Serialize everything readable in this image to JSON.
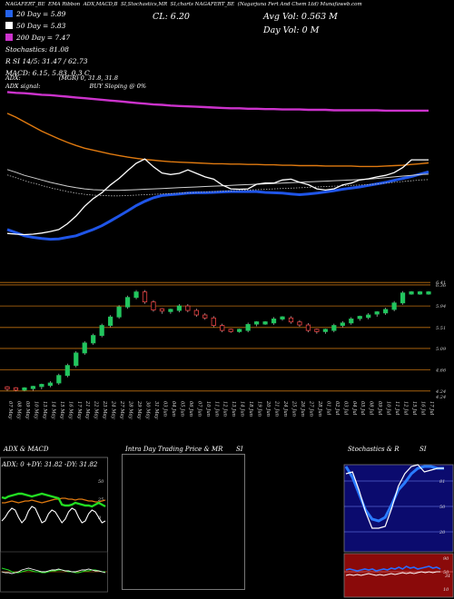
{
  "header": {
    "title_segments": [
      "NAGAFERT_BE",
      "EMA Ribbon",
      "ADX,MACD,B",
      "SI,Stochastics,MR",
      "SI,charts NAGAFERT_BE",
      "(Nagarjuna Fert And Chem Ltd) Munafaweb.com"
    ],
    "close_label": "CL: 6.20",
    "avg_vol_label": "Avg Vol: 0.563 M",
    "day_vol_label": "Day Vol: 0  M"
  },
  "legend": {
    "items": [
      {
        "label": "20  Day = 5.89",
        "color": "#2563eb"
      },
      {
        "label": "50  Day = 5.83",
        "color": "#ffffff"
      },
      {
        "label": "200  Day = 7.47",
        "color": "#cc33cc"
      }
    ],
    "stochastics_line": "Stochastics: 81.08",
    "rsi_line": "R         SI 14/5: 31.47 / 62.73",
    "macd_line": "MACD: 6.15,  5.83,  0.3 C"
  },
  "adx_info": {
    "adx_label": "ADX:",
    "adx_values": "(MGR) 0,  31.8,  31.8",
    "signal_label": "ADX  signal:",
    "signal_value": "BUY Sloping @ 0%"
  },
  "colors": {
    "ema20": "#1f55e8",
    "ema50": "#d0d0d0",
    "ema200": "#cc33cc",
    "ema_orange": "#e07a10",
    "up": "#22c55e",
    "down": "#ef4444",
    "support": "#c07010"
  },
  "price_axis": {
    "ticks": [
      "6.41",
      "6.36",
      "5.94",
      "5.51",
      "5.09",
      "4.66",
      "4.24",
      "4.24"
    ]
  },
  "dates": [
    "07 May",
    "08 May",
    "09 May",
    "10 May",
    "13 May",
    "14 May",
    "15 May",
    "16 May",
    "17 May",
    "21 May",
    "22 May",
    "23 May",
    "24 May",
    "27 May",
    "28 May",
    "29 May",
    "30 May",
    "31 May",
    "03 Jun",
    "04 Jun",
    "05 Jun",
    "06 Jun",
    "07 Jun",
    "10 Jun",
    "11 Jun",
    "12 Jun",
    "13 Jun",
    "14 Jun",
    "18 Jun",
    "19 Jun",
    "20 Jun",
    "21 Jun",
    "24 Jun",
    "25 Jun",
    "26 Jun",
    "27 Jun",
    "28 Jun",
    "01 Jul",
    "02 Jul",
    "03 Jul",
    "04 Jul",
    "05 Jul",
    "08 Jul",
    "09 Jul",
    "10 Jul",
    "11 Jul",
    "12 Jul",
    "15 Jul",
    "16 Jul",
    "17 Jul"
  ],
  "panels": {
    "adx": {
      "title": "ADX  & MACD",
      "values_label": "ADX: 0  +DY: 31.82  -DY: 31.82",
      "ticks": [
        "50",
        "25",
        "0"
      ]
    },
    "intra": {
      "title": "Intra  Day Trading Price  & MR",
      "title_right": "SI"
    },
    "stoch": {
      "title": "Stochastics & R",
      "title_right": "SI",
      "ticks": [
        "81",
        "50",
        "20"
      ],
      "rsi_ticks": [
        "90",
        "50",
        "10"
      ],
      "rsi_right_value": "31"
    }
  },
  "chart_data": [
    {
      "type": "line",
      "name": "EMA ribbon",
      "series": [
        {
          "name": "20 Day",
          "values": [
            4.4,
            4.32,
            4.24,
            4.2,
            4.17,
            4.15,
            4.16,
            4.2,
            4.24,
            4.32,
            4.4,
            4.5,
            4.62,
            4.75,
            4.88,
            5.02,
            5.13,
            5.22,
            5.28,
            5.3,
            5.32,
            5.34,
            5.35,
            5.35,
            5.36,
            5.37,
            5.38,
            5.38,
            5.38,
            5.38,
            5.36,
            5.35,
            5.34,
            5.32,
            5.3,
            5.32,
            5.34,
            5.37,
            5.4,
            5.44,
            5.47,
            5.5,
            5.54,
            5.58,
            5.62,
            5.67,
            5.72,
            5.77,
            5.83,
            5.89
          ]
        },
        {
          "name": "50 Day",
          "values": [
            5.95,
            5.88,
            5.8,
            5.74,
            5.68,
            5.62,
            5.57,
            5.52,
            5.48,
            5.45,
            5.43,
            5.42,
            5.41,
            5.41,
            5.42,
            5.43,
            5.44,
            5.45,
            5.46,
            5.47,
            5.48,
            5.49,
            5.5,
            5.51,
            5.52,
            5.53,
            5.54,
            5.55,
            5.56,
            5.57,
            5.58,
            5.59,
            5.6,
            5.61,
            5.62,
            5.63,
            5.64,
            5.65,
            5.66,
            5.67,
            5.68,
            5.69,
            5.7,
            5.72,
            5.74,
            5.76,
            5.78,
            5.8,
            5.82,
            5.83
          ]
        },
        {
          "name": "200 Day",
          "values": [
            7.95,
            7.93,
            7.92,
            7.9,
            7.88,
            7.87,
            7.85,
            7.83,
            7.81,
            7.79,
            7.77,
            7.75,
            7.73,
            7.71,
            7.69,
            7.67,
            7.65,
            7.63,
            7.62,
            7.6,
            7.59,
            7.58,
            7.57,
            7.56,
            7.55,
            7.54,
            7.53,
            7.53,
            7.52,
            7.52,
            7.51,
            7.51,
            7.5,
            7.5,
            7.5,
            7.49,
            7.49,
            7.49,
            7.48,
            7.48,
            7.48,
            7.48,
            7.48,
            7.48,
            7.47,
            7.47,
            7.47,
            7.47,
            7.47,
            7.47
          ]
        },
        {
          "name": "100 Day",
          "values": [
            7.4,
            7.3,
            7.18,
            7.06,
            6.94,
            6.84,
            6.74,
            6.65,
            6.57,
            6.5,
            6.45,
            6.4,
            6.35,
            6.31,
            6.27,
            6.24,
            6.21,
            6.19,
            6.17,
            6.15,
            6.14,
            6.13,
            6.12,
            6.11,
            6.1,
            6.1,
            6.09,
            6.09,
            6.08,
            6.08,
            6.07,
            6.07,
            6.06,
            6.06,
            6.05,
            6.05,
            6.05,
            6.04,
            6.04,
            6.04,
            6.04,
            6.03,
            6.03,
            6.03,
            6.04,
            6.05,
            6.06,
            6.08,
            6.1,
            6.12
          ]
        },
        {
          "name": "Close",
          "values": [
            4.3,
            4.28,
            4.27,
            4.28,
            4.31,
            4.35,
            4.4,
            4.55,
            4.75,
            5.0,
            5.2,
            5.35,
            5.55,
            5.72,
            5.92,
            6.11,
            6.22,
            6.02,
            5.86,
            5.82,
            5.85,
            5.94,
            5.85,
            5.76,
            5.7,
            5.55,
            5.45,
            5.44,
            5.45,
            5.57,
            5.6,
            5.6,
            5.68,
            5.7,
            5.62,
            5.56,
            5.45,
            5.42,
            5.45,
            5.55,
            5.6,
            5.68,
            5.71,
            5.76,
            5.8,
            5.87,
            6.0,
            6.2,
            6.2,
            6.2
          ]
        }
      ]
    },
    {
      "type": "candlestick",
      "name": "Daily price",
      "x": [
        "07 May",
        "08 May",
        "09 May",
        "10 May",
        "13 May",
        "14 May",
        "15 May",
        "16 May",
        "17 May",
        "21 May",
        "22 May",
        "23 May",
        "24 May",
        "27 May",
        "28 May",
        "29 May",
        "30 May",
        "31 May",
        "03 Jun",
        "04 Jun",
        "05 Jun",
        "06 Jun",
        "07 Jun",
        "10 Jun",
        "11 Jun",
        "12 Jun",
        "13 Jun",
        "14 Jun",
        "18 Jun",
        "19 Jun",
        "20 Jun",
        "21 Jun",
        "24 Jun",
        "25 Jun",
        "26 Jun",
        "27 Jun",
        "28 Jun",
        "01 Jul",
        "02 Jul",
        "03 Jul",
        "04 Jul",
        "05 Jul",
        "08 Jul",
        "09 Jul",
        "10 Jul",
        "11 Jul",
        "12 Jul",
        "15 Jul",
        "16 Jul",
        "17 Jul"
      ],
      "open": [
        4.3,
        4.28,
        4.27,
        4.28,
        4.31,
        4.35,
        4.4,
        4.55,
        4.75,
        5.0,
        5.2,
        5.35,
        5.55,
        5.72,
        5.92,
        6.11,
        6.22,
        6.02,
        5.86,
        5.82,
        5.85,
        5.94,
        5.85,
        5.76,
        5.7,
        5.55,
        5.45,
        5.44,
        5.45,
        5.57,
        5.6,
        5.6,
        5.68,
        5.7,
        5.62,
        5.56,
        5.45,
        5.42,
        5.45,
        5.55,
        5.6,
        5.68,
        5.71,
        5.76,
        5.8,
        5.87,
        6.0,
        6.2,
        6.2,
        6.2
      ],
      "close": [
        4.28,
        4.27,
        4.28,
        4.31,
        4.35,
        4.4,
        4.55,
        4.75,
        5.0,
        5.2,
        5.35,
        5.55,
        5.72,
        5.92,
        6.11,
        6.22,
        6.02,
        5.86,
        5.82,
        5.85,
        5.94,
        5.85,
        5.76,
        5.7,
        5.55,
        5.45,
        5.44,
        5.45,
        5.57,
        5.6,
        5.6,
        5.68,
        5.7,
        5.62,
        5.56,
        5.45,
        5.42,
        5.45,
        5.55,
        5.6,
        5.68,
        5.71,
        5.76,
        5.8,
        5.87,
        6.0,
        6.2,
        6.2,
        6.2,
        6.2
      ],
      "ylim": [
        4.2,
        6.45
      ]
    }
  ]
}
